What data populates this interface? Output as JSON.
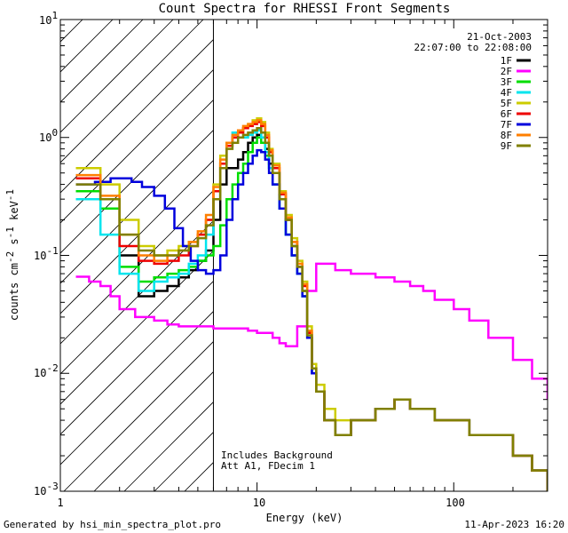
{
  "chart_data": {
    "type": "line",
    "title": "Count Spectra for RHESSI Front Segments",
    "xlabel": "Energy (keV)",
    "ylabel": "counts cm^-2 s^-1 keV^-1",
    "xscale": "log",
    "yscale": "log",
    "xlim": [
      1,
      300
    ],
    "ylim": [
      0.001,
      10
    ],
    "x_tick_labels": [
      "1",
      "10",
      "100"
    ],
    "y_tick_labels": [
      {
        "base": "10",
        "exp": "-3"
      },
      {
        "base": "10",
        "exp": "-2"
      },
      {
        "base": "10",
        "exp": "-1"
      },
      {
        "base": "10",
        "exp": "0"
      },
      {
        "base": "10",
        "exp": "1"
      }
    ],
    "date": "21-Oct-2003",
    "time_range": "22:07:00 to 22:08:00",
    "annotation_lines": [
      "Includes Background",
      "Att A1, FDecim 1"
    ],
    "shaded_region_max_kev": 6,
    "footer_left": "Generated by hsi_min_spectra_plot.pro",
    "footer_right": "11-Apr-2023 16:20",
    "series": [
      {
        "name": "1F",
        "color": "#000000",
        "x": [
          1.2,
          1.6,
          2.0,
          2.5,
          3.0,
          3.5,
          4.0,
          4.5,
          5.0,
          5.5,
          6.0,
          6.5,
          7.0,
          7.5,
          8.0,
          8.5,
          9.0,
          9.5,
          10.0,
          10.5,
          11.0,
          11.5,
          12.0,
          13.0,
          14.0,
          15.0,
          16.0,
          17.0,
          18.0,
          19.0,
          20.0,
          22.0,
          25.0,
          30.0,
          40.0,
          50.0,
          60.0,
          80.0,
          100.0,
          120.0,
          150.0,
          200.0,
          250.0,
          300.0
        ],
        "y": [
          0.45,
          0.3,
          0.1,
          0.045,
          0.05,
          0.055,
          0.065,
          0.075,
          0.09,
          0.11,
          0.2,
          0.4,
          0.55,
          0.55,
          0.65,
          0.75,
          0.9,
          1.0,
          1.05,
          1.0,
          0.8,
          0.6,
          0.5,
          0.3,
          0.2,
          0.12,
          0.08,
          0.05,
          0.02,
          0.01,
          0.007,
          0.004,
          0.003,
          0.004,
          0.005,
          0.006,
          0.005,
          0.004,
          0.004,
          0.003,
          0.003,
          0.002,
          0.0015,
          0.001
        ]
      },
      {
        "name": "2F",
        "color": "#ff00ff",
        "x": [
          1.2,
          1.4,
          1.6,
          1.8,
          2.0,
          2.4,
          3.0,
          3.5,
          4.0,
          5.0,
          6.0,
          7.0,
          8.0,
          9.0,
          10.0,
          11.0,
          12.0,
          13.0,
          14.0,
          15.0,
          16.0,
          18.0,
          20.0,
          22.0,
          25.0,
          30.0,
          35.0,
          40.0,
          50.0,
          60.0,
          70.0,
          80.0,
          100.0,
          120.0,
          150.0,
          200.0,
          250.0,
          300.0
        ],
        "y": [
          0.066,
          0.06,
          0.055,
          0.045,
          0.035,
          0.03,
          0.028,
          0.026,
          0.025,
          0.025,
          0.024,
          0.024,
          0.024,
          0.023,
          0.022,
          0.022,
          0.02,
          0.018,
          0.017,
          0.017,
          0.025,
          0.05,
          0.085,
          0.085,
          0.075,
          0.07,
          0.07,
          0.065,
          0.06,
          0.055,
          0.05,
          0.042,
          0.035,
          0.028,
          0.02,
          0.013,
          0.009,
          0.006
        ]
      },
      {
        "name": "3F",
        "color": "#00dd00",
        "x": [
          1.2,
          1.6,
          2.0,
          2.5,
          3.0,
          3.5,
          4.0,
          4.5,
          5.0,
          5.5,
          6.0,
          6.5,
          7.0,
          7.5,
          8.0,
          8.5,
          9.0,
          9.5,
          10.0,
          10.5,
          11.0,
          11.5,
          12.0,
          13.0,
          14.0,
          15.0,
          16.0,
          17.0,
          18.0,
          19.0,
          20.0,
          22.0,
          25.0,
          30.0,
          40.0,
          50.0,
          60.0,
          80.0,
          100.0,
          120.0,
          150.0,
          200.0,
          250.0,
          300.0
        ],
        "y": [
          0.35,
          0.25,
          0.08,
          0.06,
          0.065,
          0.07,
          0.075,
          0.08,
          0.09,
          0.1,
          0.12,
          0.18,
          0.3,
          0.4,
          0.5,
          0.6,
          0.75,
          0.9,
          1.0,
          0.9,
          0.7,
          0.55,
          0.4,
          0.25,
          0.15,
          0.1,
          0.07,
          0.045,
          0.02,
          0.01,
          0.007,
          0.004,
          0.003,
          0.004,
          0.005,
          0.006,
          0.005,
          0.004,
          0.004,
          0.003,
          0.003,
          0.002,
          0.0015,
          0.001
        ]
      },
      {
        "name": "4F",
        "color": "#00e5ee",
        "x": [
          1.2,
          1.6,
          2.0,
          2.5,
          3.0,
          3.5,
          4.0,
          4.5,
          5.0,
          5.5,
          6.0,
          6.5,
          7.0,
          7.5,
          8.0,
          8.5,
          9.0,
          9.5,
          10.0,
          10.5,
          11.0,
          11.5,
          12.0,
          13.0,
          14.0,
          15.0,
          16.0,
          17.0,
          18.0,
          19.0,
          20.0,
          22.0,
          25.0,
          30.0,
          40.0,
          50.0,
          60.0,
          80.0,
          100.0,
          120.0,
          150.0,
          200.0,
          250.0,
          300.0
        ],
        "y": [
          0.3,
          0.15,
          0.07,
          0.05,
          0.06,
          0.065,
          0.07,
          0.085,
          0.1,
          0.15,
          0.3,
          0.6,
          0.9,
          1.1,
          1.0,
          1.0,
          1.05,
          1.1,
          1.15,
          1.0,
          0.75,
          0.55,
          0.4,
          0.25,
          0.15,
          0.1,
          0.07,
          0.045,
          0.02,
          0.01,
          0.007,
          0.004,
          0.003,
          0.004,
          0.005,
          0.006,
          0.005,
          0.004,
          0.004,
          0.003,
          0.003,
          0.002,
          0.0015,
          0.001
        ]
      },
      {
        "name": "5F",
        "color": "#cccc00",
        "x": [
          1.2,
          1.6,
          2.0,
          2.5,
          3.0,
          3.5,
          4.0,
          4.5,
          5.0,
          5.5,
          6.0,
          6.5,
          7.0,
          7.5,
          8.0,
          8.5,
          9.0,
          9.5,
          10.0,
          10.5,
          11.0,
          11.5,
          12.0,
          13.0,
          14.0,
          15.0,
          16.0,
          17.0,
          18.0,
          19.0,
          20.0,
          22.0,
          25.0,
          30.0,
          40.0,
          50.0,
          60.0,
          80.0,
          100.0,
          120.0,
          150.0,
          200.0,
          250.0,
          300.0
        ],
        "y": [
          0.55,
          0.4,
          0.2,
          0.12,
          0.1,
          0.11,
          0.12,
          0.13,
          0.15,
          0.2,
          0.4,
          0.7,
          0.9,
          1.0,
          1.1,
          1.2,
          1.3,
          1.4,
          1.45,
          1.35,
          1.1,
          0.8,
          0.6,
          0.35,
          0.22,
          0.14,
          0.09,
          0.06,
          0.025,
          0.012,
          0.008,
          0.005,
          0.004,
          0.004,
          0.005,
          0.006,
          0.005,
          0.004,
          0.004,
          0.003,
          0.003,
          0.002,
          0.0015,
          0.001
        ]
      },
      {
        "name": "6F",
        "color": "#ee0000",
        "x": [
          1.2,
          1.6,
          2.0,
          2.5,
          3.0,
          3.5,
          4.0,
          4.5,
          5.0,
          5.5,
          6.0,
          6.5,
          7.0,
          7.5,
          8.0,
          8.5,
          9.0,
          9.5,
          10.0,
          10.5,
          11.0,
          11.5,
          12.0,
          13.0,
          14.0,
          15.0,
          16.0,
          17.0,
          18.0,
          19.0,
          20.0,
          22.0,
          25.0,
          30.0,
          40.0,
          50.0,
          60.0,
          80.0,
          100.0,
          120.0,
          150.0,
          200.0,
          250.0,
          300.0
        ],
        "y": [
          0.45,
          0.3,
          0.12,
          0.09,
          0.085,
          0.09,
          0.1,
          0.12,
          0.15,
          0.2,
          0.35,
          0.6,
          0.85,
          1.0,
          1.1,
          1.2,
          1.25,
          1.3,
          1.35,
          1.25,
          1.0,
          0.75,
          0.55,
          0.33,
          0.2,
          0.13,
          0.08,
          0.055,
          0.022,
          0.011,
          0.007,
          0.004,
          0.003,
          0.004,
          0.005,
          0.006,
          0.005,
          0.004,
          0.004,
          0.003,
          0.003,
          0.002,
          0.0015,
          0.001
        ]
      },
      {
        "name": "7F",
        "color": "#0000dd",
        "x": [
          1.2,
          1.5,
          1.8,
          2.0,
          2.3,
          2.6,
          3.0,
          3.4,
          3.8,
          4.2,
          4.6,
          5.0,
          5.5,
          6.0,
          6.5,
          7.0,
          7.5,
          8.0,
          8.5,
          9.0,
          9.5,
          10.0,
          10.5,
          11.0,
          11.5,
          12.0,
          13.0,
          14.0,
          15.0,
          16.0,
          17.0,
          18.0,
          19.0,
          20.0,
          22.0,
          25.0,
          30.0,
          40.0,
          50.0,
          60.0,
          80.0,
          100.0,
          120.0,
          150.0,
          200.0,
          250.0,
          300.0
        ],
        "y": [
          0.4,
          0.42,
          0.45,
          0.45,
          0.42,
          0.38,
          0.32,
          0.25,
          0.17,
          0.12,
          0.09,
          0.075,
          0.07,
          0.075,
          0.1,
          0.2,
          0.3,
          0.4,
          0.5,
          0.6,
          0.7,
          0.78,
          0.75,
          0.65,
          0.5,
          0.4,
          0.25,
          0.15,
          0.1,
          0.07,
          0.045,
          0.02,
          0.01,
          0.007,
          0.004,
          0.003,
          0.004,
          0.005,
          0.006,
          0.005,
          0.004,
          0.004,
          0.003,
          0.003,
          0.002,
          0.0015,
          0.001
        ]
      },
      {
        "name": "8F",
        "color": "#ff7f00",
        "x": [
          1.2,
          1.6,
          2.0,
          2.5,
          3.0,
          3.5,
          4.0,
          4.5,
          5.0,
          5.5,
          6.0,
          6.5,
          7.0,
          7.5,
          8.0,
          8.5,
          9.0,
          9.5,
          10.0,
          10.5,
          11.0,
          11.5,
          12.0,
          13.0,
          14.0,
          15.0,
          16.0,
          17.0,
          18.0,
          19.0,
          20.0,
          22.0,
          25.0,
          30.0,
          40.0,
          50.0,
          60.0,
          80.0,
          100.0,
          120.0,
          150.0,
          200.0,
          250.0,
          300.0
        ],
        "y": [
          0.48,
          0.32,
          0.15,
          0.1,
          0.09,
          0.1,
          0.11,
          0.13,
          0.16,
          0.22,
          0.38,
          0.65,
          0.9,
          1.05,
          1.15,
          1.25,
          1.3,
          1.35,
          1.4,
          1.3,
          1.05,
          0.78,
          0.58,
          0.34,
          0.21,
          0.13,
          0.085,
          0.057,
          0.023,
          0.011,
          0.007,
          0.004,
          0.003,
          0.004,
          0.005,
          0.006,
          0.005,
          0.004,
          0.004,
          0.003,
          0.003,
          0.002,
          0.0015,
          0.001
        ]
      },
      {
        "name": "9F",
        "color": "#808000",
        "x": [
          1.2,
          1.6,
          2.0,
          2.5,
          3.0,
          3.5,
          4.0,
          4.5,
          5.0,
          5.5,
          6.0,
          6.5,
          7.0,
          7.5,
          8.0,
          8.5,
          9.0,
          9.5,
          10.0,
          10.5,
          11.0,
          11.5,
          12.0,
          13.0,
          14.0,
          15.0,
          16.0,
          17.0,
          18.0,
          19.0,
          20.0,
          22.0,
          25.0,
          30.0,
          40.0,
          50.0,
          60.0,
          80.0,
          100.0,
          120.0,
          150.0,
          200.0,
          250.0,
          300.0
        ],
        "y": [
          0.4,
          0.3,
          0.15,
          0.11,
          0.1,
          0.1,
          0.11,
          0.12,
          0.14,
          0.18,
          0.3,
          0.55,
          0.8,
          0.9,
          1.0,
          1.05,
          1.1,
          1.15,
          1.2,
          1.1,
          0.9,
          0.7,
          0.5,
          0.3,
          0.2,
          0.12,
          0.08,
          0.05,
          0.021,
          0.011,
          0.007,
          0.004,
          0.003,
          0.004,
          0.005,
          0.006,
          0.005,
          0.004,
          0.004,
          0.003,
          0.003,
          0.002,
          0.0015,
          0.001
        ]
      }
    ]
  }
}
